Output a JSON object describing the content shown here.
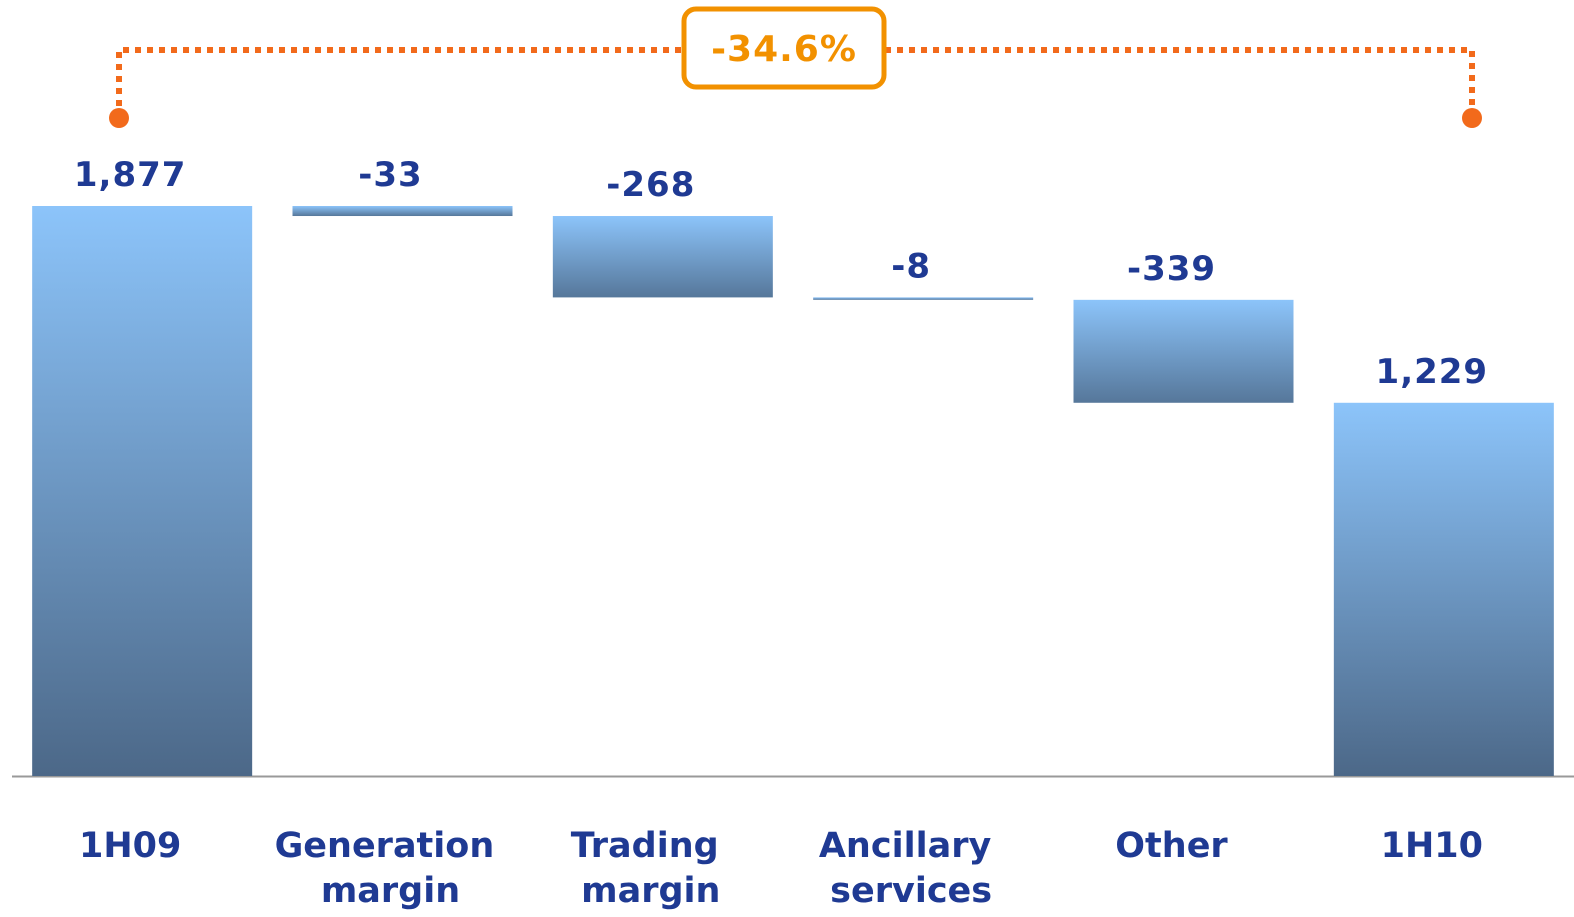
{
  "chart_data": {
    "type": "waterfall",
    "categories": [
      "1H09",
      "Generation margin",
      "Trading margin",
      "Ancillary services",
      "Other",
      "1H10"
    ],
    "values": [
      1877,
      -33,
      -268,
      -8,
      -339,
      1229
    ],
    "value_labels": [
      "1,877",
      "-33",
      "-268",
      "-8",
      "-339",
      "1,229"
    ],
    "annotation": "-34.6%"
  }
}
